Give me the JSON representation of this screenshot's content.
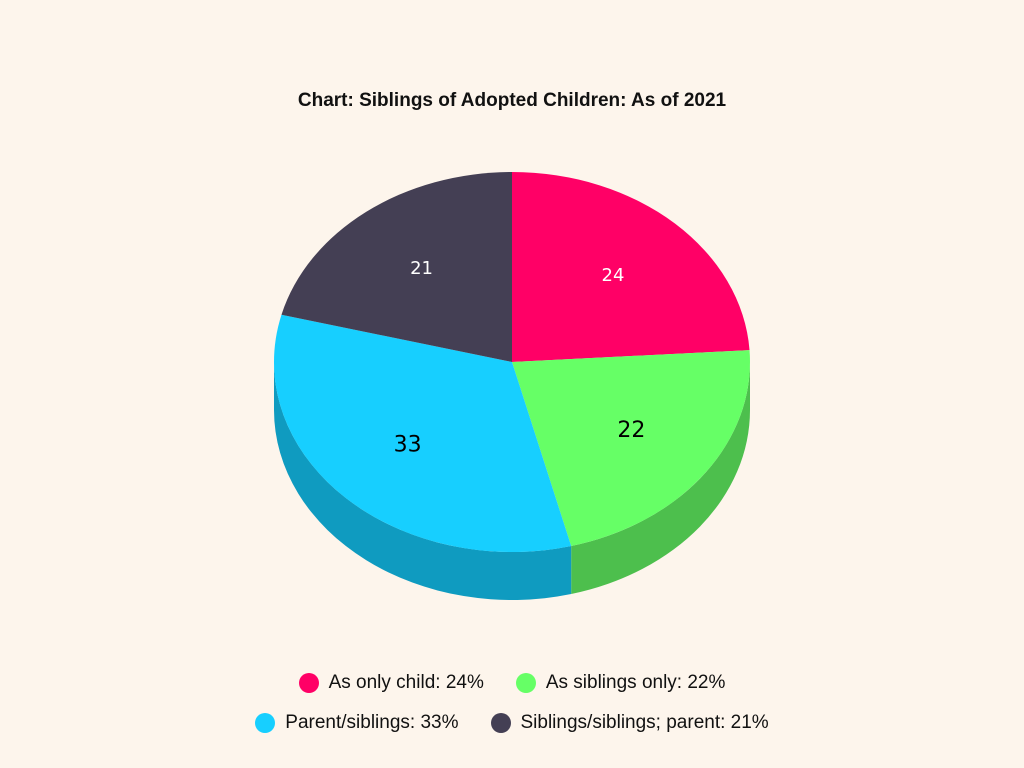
{
  "chart_data": {
    "type": "pie",
    "title": "Chart: Siblings of Adopted Children: As of 2021",
    "slices": [
      {
        "name": "As only child",
        "value": 24,
        "label": "24",
        "legend": "As only child: 24%",
        "color": "#ff0066",
        "side_color": "#c70052",
        "label_color": "#ffffff"
      },
      {
        "name": "As siblings only",
        "value": 22,
        "label": "22",
        "legend": "As siblings only: 22%",
        "color": "#66ff66",
        "side_color": "#4dbf4d",
        "label_color": "#000000"
      },
      {
        "name": "Parent/siblings",
        "value": 33,
        "label": "33",
        "legend": "Parent/siblings: 33%",
        "color": "#17cfff",
        "side_color": "#0f9bc0",
        "label_color": "#000000"
      },
      {
        "name": "Siblings/siblings; parent",
        "value": 21,
        "label": "21",
        "legend": "Siblings/siblings; parent: 21%",
        "color": "#443f54",
        "side_color": "#2e2a3a",
        "label_color": "#ffffff"
      }
    ]
  }
}
